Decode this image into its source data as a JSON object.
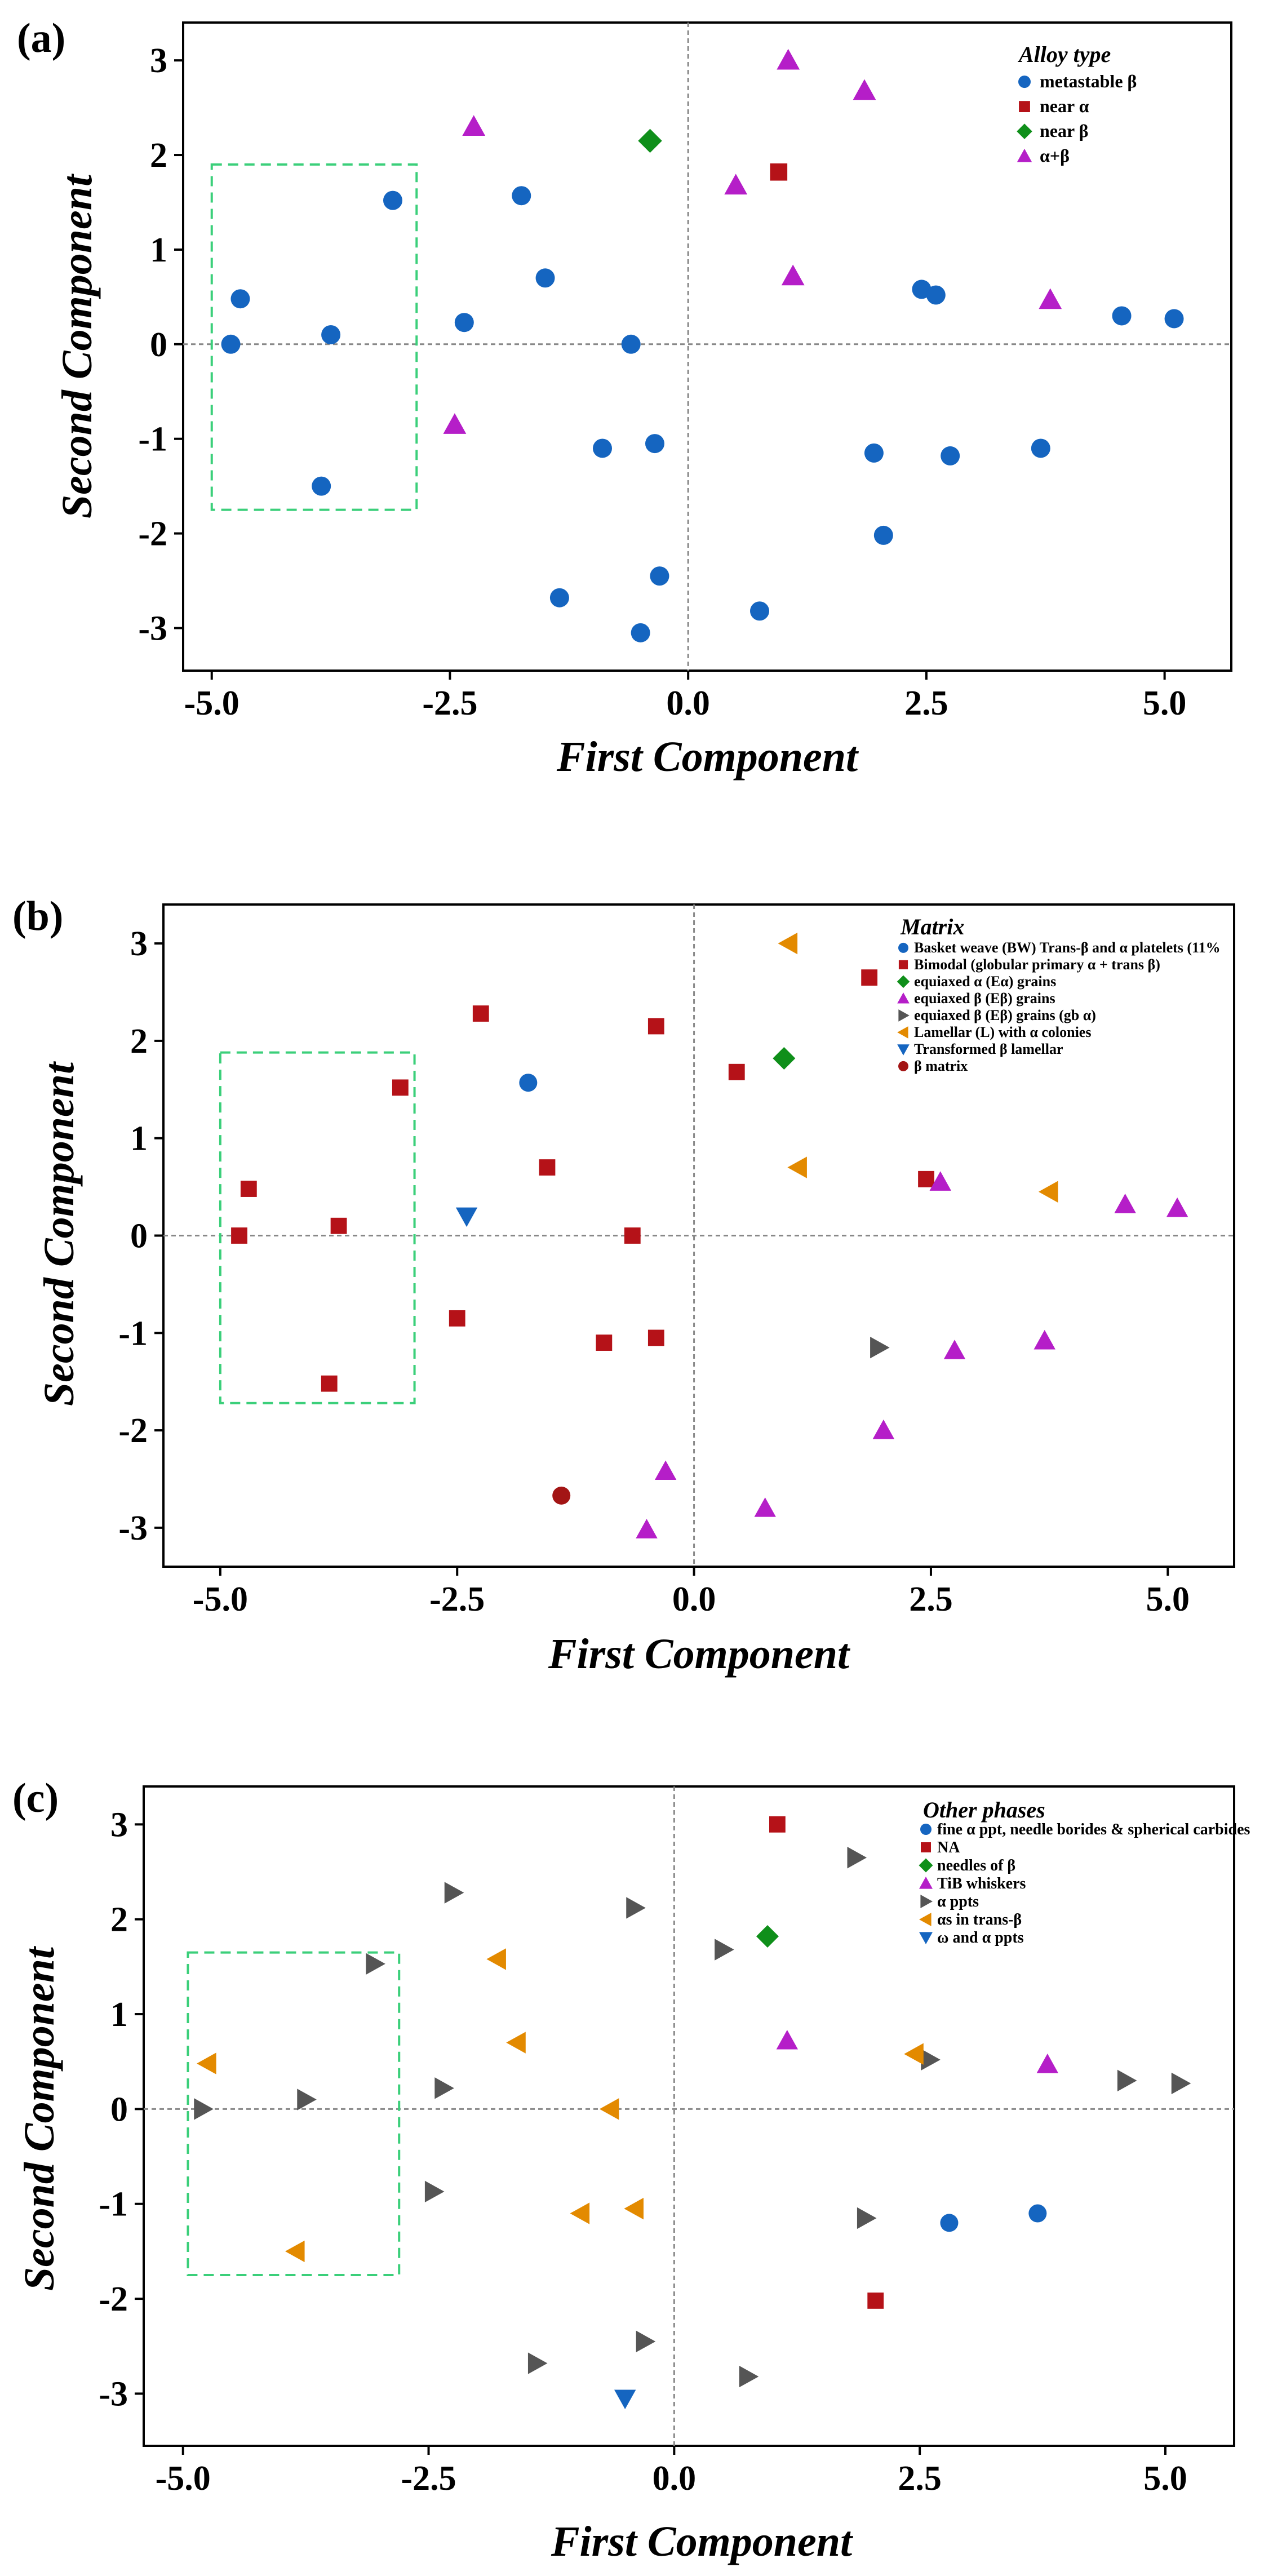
{
  "colors": {
    "blue": "#1565c0",
    "red": "#b51218",
    "green": "#0f8f1a",
    "purple": "#b51ec8",
    "gray": "#555555",
    "orange": "#e38a00",
    "darkred": "#a31515",
    "highlight": "#3bcf7a",
    "zero_line": "#888888"
  },
  "chart_data": [
    {
      "type": "scatter",
      "panel_label": "(a)",
      "xlabel": "First Component",
      "ylabel": "Second Component",
      "xlim": [
        -5.3,
        5.7
      ],
      "ylim": [
        -3.45,
        3.4
      ],
      "xticks": [
        -5.0,
        -2.5,
        0.0,
        2.5,
        5.0
      ],
      "xtick_labels": [
        "-5.0",
        "-2.5",
        "0.0",
        "2.5",
        "5.0"
      ],
      "yticks": [
        -3,
        -2,
        -1,
        0,
        1,
        2,
        3
      ],
      "ytick_labels": [
        "-3",
        "-2",
        "-1",
        "0",
        "1",
        "2",
        "3"
      ],
      "highlight_box": {
        "x": [
          -5.0,
          -2.85
        ],
        "y": [
          -1.75,
          1.9
        ]
      },
      "legend": {
        "title": "Alloy type",
        "position": "top-right"
      },
      "series": [
        {
          "name": "metastable β",
          "marker": "circle",
          "color": "blue",
          "points": [
            [
              -4.8,
              0.0
            ],
            [
              -4.7,
              0.48
            ],
            [
              -3.75,
              0.1
            ],
            [
              -3.85,
              -1.5
            ],
            [
              -3.1,
              1.52
            ],
            [
              -2.35,
              0.23
            ],
            [
              -1.75,
              1.57
            ],
            [
              -1.5,
              0.7
            ],
            [
              -0.6,
              0.0
            ],
            [
              -0.9,
              -1.1
            ],
            [
              -0.35,
              -1.05
            ],
            [
              -1.35,
              -2.68
            ],
            [
              -0.3,
              -2.45
            ],
            [
              -0.5,
              -3.05
            ],
            [
              0.75,
              -2.82
            ],
            [
              1.95,
              -1.15
            ],
            [
              2.05,
              -2.02
            ],
            [
              2.75,
              -1.18
            ],
            [
              3.7,
              -1.1
            ],
            [
              2.45,
              0.58
            ],
            [
              2.6,
              0.52
            ],
            [
              4.55,
              0.3
            ],
            [
              5.1,
              0.27
            ]
          ]
        },
        {
          "name": "near α",
          "marker": "square",
          "color": "red",
          "points": [
            [
              0.95,
              1.82
            ]
          ]
        },
        {
          "name": "near β",
          "marker": "diamond",
          "color": "green",
          "points": [
            [
              -0.4,
              2.15
            ]
          ]
        },
        {
          "name": "α+β",
          "marker": "triangle-up",
          "color": "purple",
          "points": [
            [
              -2.25,
              2.3
            ],
            [
              -2.45,
              -0.85
            ],
            [
              0.5,
              1.68
            ],
            [
              1.05,
              3.0
            ],
            [
              1.85,
              2.68
            ],
            [
              1.1,
              0.72
            ],
            [
              3.8,
              0.47
            ]
          ]
        }
      ]
    },
    {
      "type": "scatter",
      "panel_label": "(b)",
      "xlabel": "First Component",
      "ylabel": "Second Component",
      "xlim": [
        -5.6,
        5.7
      ],
      "ylim": [
        -3.4,
        3.4
      ],
      "xticks": [
        -5.0,
        -2.5,
        0.0,
        2.5,
        5.0
      ],
      "xtick_labels": [
        "-5.0",
        "-2.5",
        "0.0",
        "2.5",
        "5.0"
      ],
      "yticks": [
        -3,
        -2,
        -1,
        0,
        1,
        2,
        3
      ],
      "ytick_labels": [
        "-3",
        "-2",
        "-1",
        "0",
        "1",
        "2",
        "3"
      ],
      "highlight_box": {
        "x": [
          -5.0,
          -2.95
        ],
        "y": [
          -1.72,
          1.88
        ]
      },
      "legend": {
        "title": "Matrix",
        "position": "top-right"
      },
      "series": [
        {
          "name": "Basket weave (BW) Trans-β and  α platelets (11%",
          "marker": "circle",
          "color": "blue",
          "points": [
            [
              -1.75,
              1.57
            ]
          ]
        },
        {
          "name": "Bimodal (globular primary α + trans β)",
          "marker": "square",
          "color": "red",
          "points": [
            [
              -4.8,
              0.0
            ],
            [
              -4.7,
              0.48
            ],
            [
              -3.75,
              0.1
            ],
            [
              -3.85,
              -1.52
            ],
            [
              -3.1,
              1.52
            ],
            [
              -2.25,
              2.28
            ],
            [
              -2.5,
              -0.85
            ],
            [
              -1.55,
              0.7
            ],
            [
              -0.95,
              -1.1
            ],
            [
              -0.4,
              2.15
            ],
            [
              -0.65,
              0.0
            ],
            [
              -0.4,
              -1.05
            ],
            [
              0.45,
              1.68
            ],
            [
              1.85,
              2.65
            ],
            [
              2.45,
              0.58
            ]
          ]
        },
        {
          "name": "equiaxed  α (Eα) grains",
          "marker": "diamond",
          "color": "green",
          "points": [
            [
              0.95,
              1.82
            ]
          ]
        },
        {
          "name": "equiaxed  β (Eβ) grains",
          "marker": "triangle-up",
          "color": "purple",
          "points": [
            [
              2.6,
              0.55
            ],
            [
              4.55,
              0.32
            ],
            [
              5.1,
              0.28
            ],
            [
              2.75,
              -1.18
            ],
            [
              3.7,
              -1.08
            ],
            [
              2.0,
              -2.0
            ],
            [
              0.75,
              -2.8
            ],
            [
              -0.3,
              -2.42
            ],
            [
              -0.5,
              -3.02
            ]
          ]
        },
        {
          "name": "equiaxed  β (Eβ) grains (gb α)",
          "marker": "triangle-right",
          "color": "gray",
          "points": [
            [
              1.95,
              -1.15
            ]
          ]
        },
        {
          "name": "Lamellar (L) with α colonies",
          "marker": "triangle-left",
          "color": "orange",
          "points": [
            [
              1.0,
              3.0
            ],
            [
              1.1,
              0.7
            ],
            [
              3.75,
              0.45
            ]
          ]
        },
        {
          "name": "Transformed β  lamellar",
          "marker": "triangle-down",
          "color": "blue",
          "points": [
            [
              -2.4,
              0.2
            ]
          ]
        },
        {
          "name": "β matrix",
          "marker": "circle",
          "color": "darkred",
          "points": [
            [
              -1.4,
              -2.67
            ]
          ]
        }
      ]
    },
    {
      "type": "scatter",
      "panel_label": "(c)",
      "xlabel": "First Component",
      "ylabel": "Second Component",
      "xlim": [
        -5.4,
        5.7
      ],
      "ylim": [
        -3.55,
        3.4
      ],
      "xticks": [
        -5.0,
        -2.5,
        0.0,
        2.5,
        5.0
      ],
      "xtick_labels": [
        "-5.0",
        "-2.5",
        "0.0",
        "2.5",
        "5.0"
      ],
      "yticks": [
        -3,
        -2,
        -1,
        0,
        1,
        2,
        3
      ],
      "ytick_labels": [
        "-3",
        "-2",
        "-1",
        "0",
        "1",
        "2",
        "3"
      ],
      "highlight_box": {
        "x": [
          -4.95,
          -2.8
        ],
        "y": [
          -1.75,
          1.65
        ]
      },
      "legend": {
        "title": "Other phases",
        "position": "top-right"
      },
      "series": [
        {
          "name": "fine α ppt, needle borides & spherical carbides",
          "marker": "circle",
          "color": "blue",
          "points": [
            [
              2.8,
              -1.2
            ],
            [
              3.7,
              -1.1
            ]
          ]
        },
        {
          "name": "NA",
          "marker": "square",
          "color": "red",
          "points": [
            [
              1.05,
              3.0
            ],
            [
              2.05,
              -2.02
            ]
          ]
        },
        {
          "name": "needles of β",
          "marker": "diamond",
          "color": "green",
          "points": [
            [
              0.95,
              1.82
            ]
          ]
        },
        {
          "name": "TiB whiskers",
          "marker": "triangle-up",
          "color": "purple",
          "points": [
            [
              1.15,
              0.72
            ],
            [
              3.8,
              0.47
            ]
          ]
        },
        {
          "name": "α ppts",
          "marker": "triangle-right",
          "color": "gray",
          "points": [
            [
              -4.8,
              0.0
            ],
            [
              -3.75,
              0.1
            ],
            [
              -3.05,
              1.53
            ],
            [
              -2.25,
              2.28
            ],
            [
              -2.35,
              0.22
            ],
            [
              -2.45,
              -0.87
            ],
            [
              -0.4,
              2.12
            ],
            [
              -1.4,
              -2.68
            ],
            [
              -0.3,
              -2.45
            ],
            [
              0.5,
              1.68
            ],
            [
              0.75,
              -2.82
            ],
            [
              1.85,
              2.65
            ],
            [
              1.95,
              -1.15
            ],
            [
              2.6,
              0.52
            ],
            [
              4.6,
              0.3
            ],
            [
              5.15,
              0.27
            ]
          ]
        },
        {
          "name": "αs in trans-β",
          "marker": "triangle-left",
          "color": "orange",
          "points": [
            [
              -4.75,
              0.48
            ],
            [
              -3.85,
              -1.5
            ],
            [
              -1.8,
              1.58
            ],
            [
              -1.6,
              0.7
            ],
            [
              -0.95,
              -1.1
            ],
            [
              -0.65,
              0.0
            ],
            [
              -0.4,
              -1.05
            ],
            [
              2.45,
              0.58
            ]
          ]
        },
        {
          "name": "ω and α ppts",
          "marker": "triangle-down",
          "color": "blue",
          "points": [
            [
              -0.5,
              -3.05
            ]
          ]
        }
      ]
    }
  ]
}
